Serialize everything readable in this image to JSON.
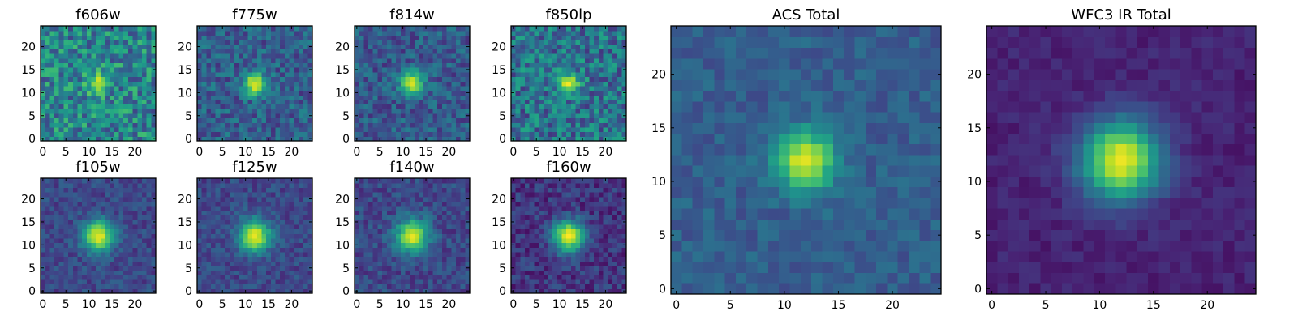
{
  "chart_data": [
    {
      "type": "heatmap",
      "title": "f606w",
      "xlim": [
        0,
        24
      ],
      "ylim": [
        0,
        24
      ],
      "xticks": [
        0,
        5,
        10,
        15,
        20
      ],
      "yticks": [
        0,
        5,
        10,
        15,
        20
      ],
      "center": [
        12,
        12
      ],
      "sigma": 1.6,
      "peak": 0.95,
      "background": 0.45,
      "noise": 0.24,
      "colormap": "viridis",
      "grid": false
    },
    {
      "type": "heatmap",
      "title": "f775w",
      "xlim": [
        0,
        24
      ],
      "ylim": [
        0,
        24
      ],
      "xticks": [
        0,
        5,
        10,
        15,
        20
      ],
      "yticks": [
        0,
        5,
        10,
        15,
        20
      ],
      "center": [
        12,
        12
      ],
      "sigma": 1.7,
      "peak": 0.95,
      "background": 0.3,
      "noise": 0.16,
      "colormap": "viridis",
      "grid": false
    },
    {
      "type": "heatmap",
      "title": "f814w",
      "xlim": [
        0,
        24
      ],
      "ylim": [
        0,
        24
      ],
      "xticks": [
        0,
        5,
        10,
        15,
        20
      ],
      "yticks": [
        0,
        5,
        10,
        15,
        20
      ],
      "center": [
        12,
        12
      ],
      "sigma": 1.8,
      "peak": 0.93,
      "background": 0.28,
      "noise": 0.15,
      "colormap": "viridis",
      "grid": false
    },
    {
      "type": "heatmap",
      "title": "f850lp",
      "xlim": [
        0,
        24
      ],
      "ylim": [
        0,
        24
      ],
      "xticks": [
        0,
        5,
        10,
        15,
        20
      ],
      "yticks": [
        0,
        5,
        10,
        15,
        20
      ],
      "center": [
        12,
        12
      ],
      "sigma": 1.6,
      "peak": 0.93,
      "background": 0.38,
      "noise": 0.22,
      "colormap": "viridis",
      "grid": false
    },
    {
      "type": "heatmap",
      "title": "f105w",
      "xlim": [
        0,
        24
      ],
      "ylim": [
        0,
        24
      ],
      "xticks": [
        0,
        5,
        10,
        15,
        20
      ],
      "yticks": [
        0,
        5,
        10,
        15,
        20
      ],
      "center": [
        12,
        12
      ],
      "sigma": 2.4,
      "peak": 0.98,
      "background": 0.22,
      "noise": 0.1,
      "colormap": "viridis",
      "grid": false
    },
    {
      "type": "heatmap",
      "title": "f125w",
      "xlim": [
        0,
        24
      ],
      "ylim": [
        0,
        24
      ],
      "xticks": [
        0,
        5,
        10,
        15,
        20
      ],
      "yticks": [
        0,
        5,
        10,
        15,
        20
      ],
      "center": [
        12,
        12
      ],
      "sigma": 2.4,
      "peak": 0.98,
      "background": 0.22,
      "noise": 0.1,
      "colormap": "viridis",
      "grid": false
    },
    {
      "type": "heatmap",
      "title": "f140w",
      "xlim": [
        0,
        24
      ],
      "ylim": [
        0,
        24
      ],
      "xticks": [
        0,
        5,
        10,
        15,
        20
      ],
      "yticks": [
        0,
        5,
        10,
        15,
        20
      ],
      "center": [
        12,
        12
      ],
      "sigma": 2.5,
      "peak": 0.96,
      "background": 0.22,
      "noise": 0.11,
      "colormap": "viridis",
      "grid": false
    },
    {
      "type": "heatmap",
      "title": "f160w",
      "xlim": [
        0,
        24
      ],
      "ylim": [
        0,
        24
      ],
      "xticks": [
        0,
        5,
        10,
        15,
        20
      ],
      "yticks": [
        0,
        5,
        10,
        15,
        20
      ],
      "center": [
        12,
        12
      ],
      "sigma": 2.4,
      "peak": 0.98,
      "background": 0.16,
      "noise": 0.12,
      "colormap": "viridis",
      "grid": false
    },
    {
      "type": "heatmap",
      "title": "ACS Total",
      "xlim": [
        0,
        24
      ],
      "ylim": [
        0,
        24
      ],
      "xticks": [
        0,
        5,
        10,
        15,
        20
      ],
      "yticks": [
        0,
        5,
        10,
        15,
        20
      ],
      "center": [
        12,
        12
      ],
      "sigma": 1.9,
      "peak": 0.98,
      "background": 0.3,
      "noise": 0.08,
      "colormap": "viridis",
      "grid": false
    },
    {
      "type": "heatmap",
      "title": "WFC3 IR Total",
      "xlim": [
        0,
        24
      ],
      "ylim": [
        0,
        24
      ],
      "xticks": [
        0,
        5,
        10,
        15,
        20
      ],
      "yticks": [
        0,
        5,
        10,
        15,
        20
      ],
      "center": [
        12,
        12
      ],
      "sigma": 2.6,
      "peak": 0.98,
      "background": 0.1,
      "noise": 0.05,
      "colormap": "viridis",
      "grid": false
    }
  ]
}
